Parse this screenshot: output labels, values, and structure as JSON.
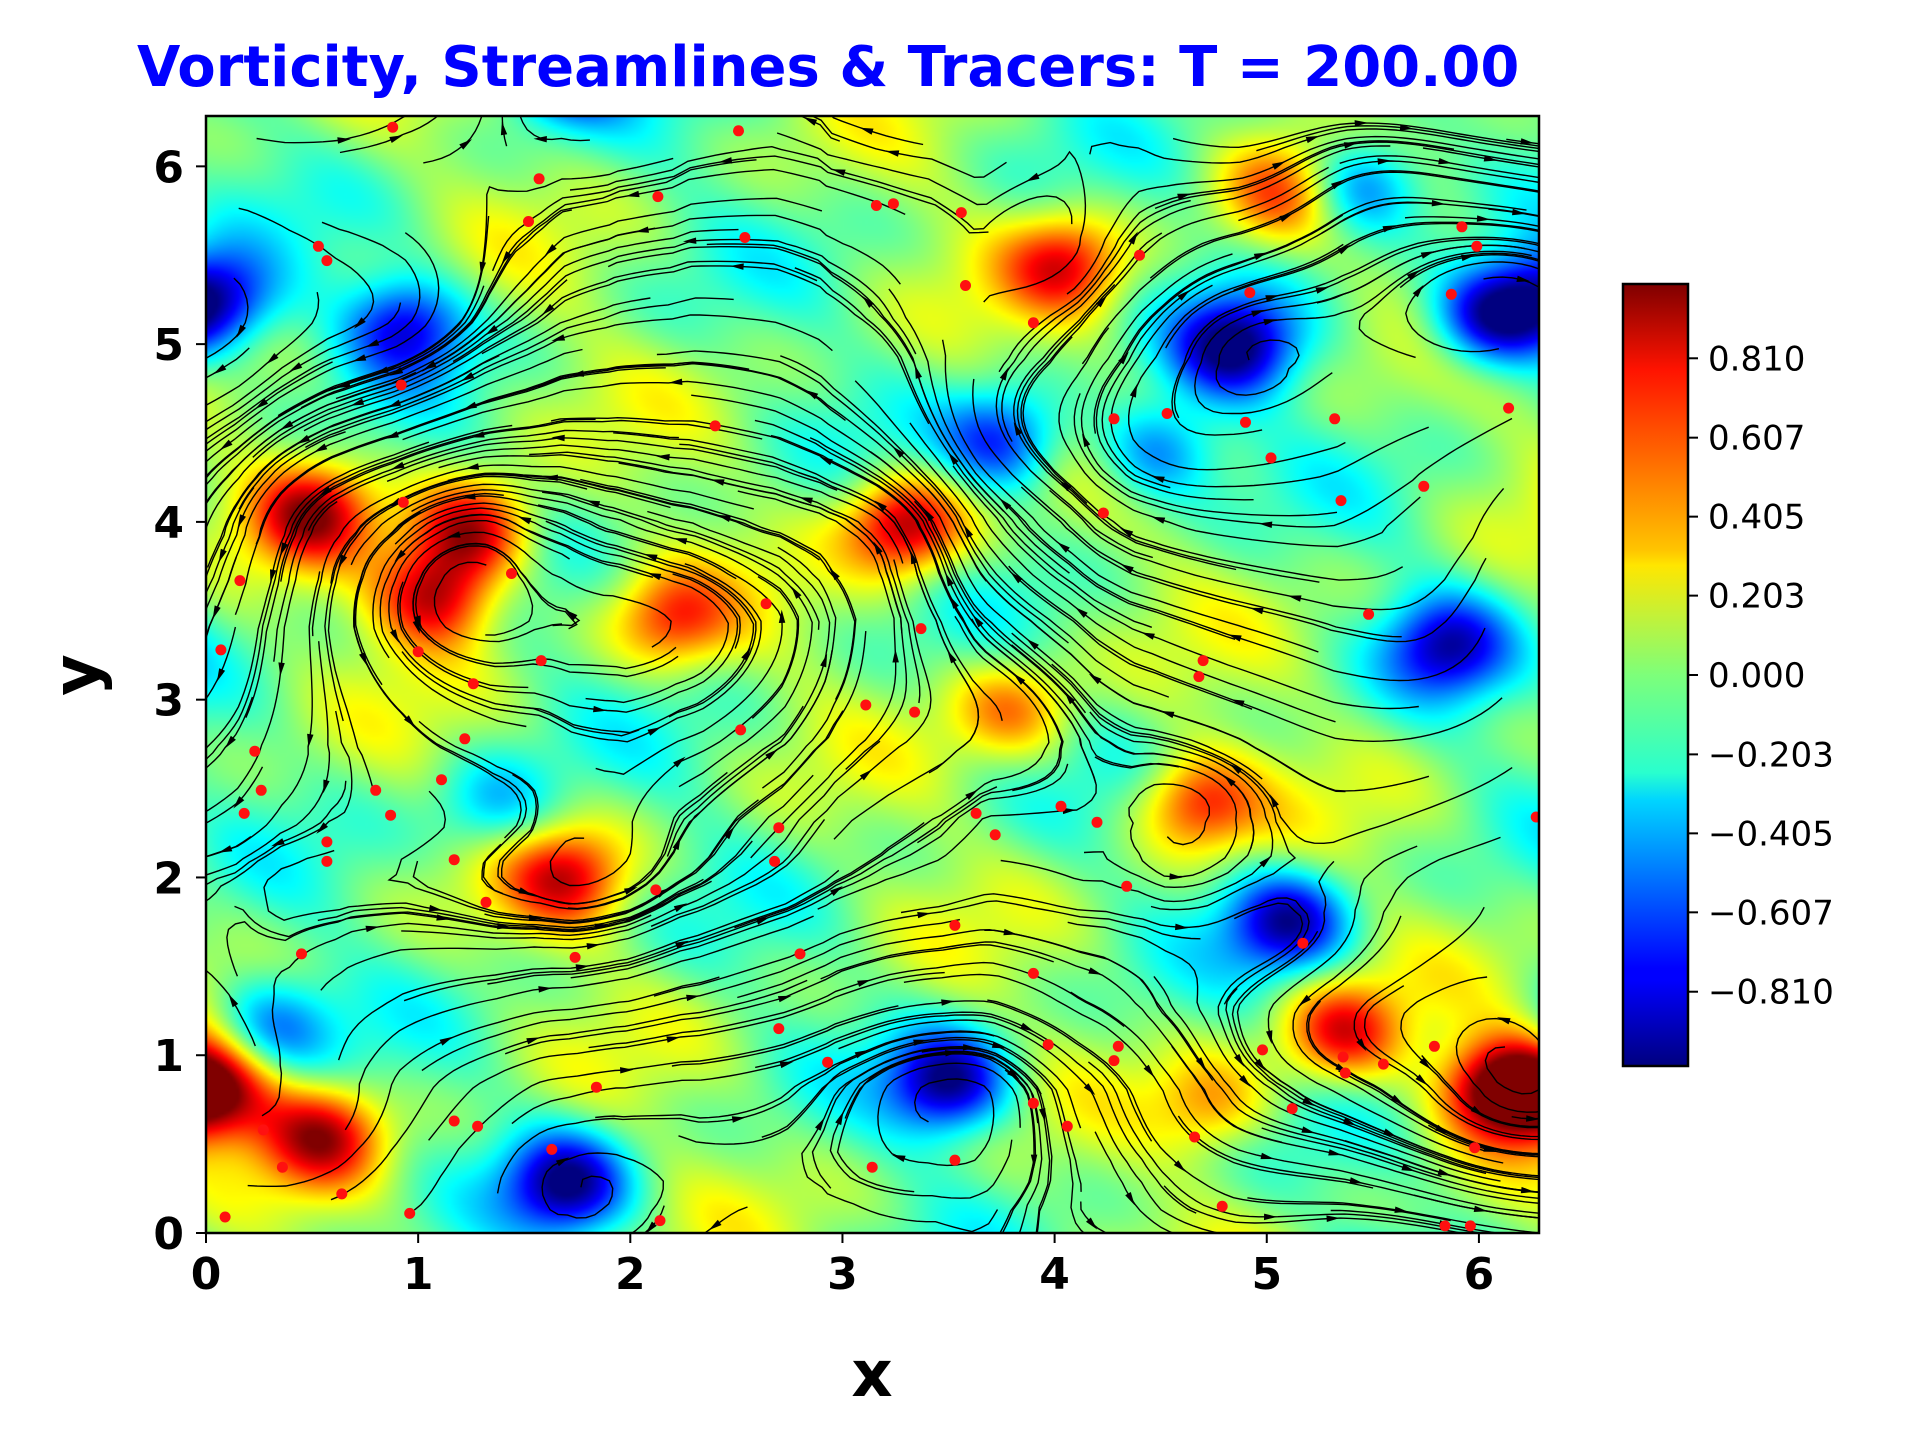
{
  "chart_data": {
    "type": "heatmap",
    "title": "Vorticity, Streamlines & Tracers: T = 200.00",
    "title_color": "#0000ff",
    "xlabel": "x",
    "ylabel": "y",
    "xlim": [
      0,
      6.2832
    ],
    "ylim": [
      0,
      6.2832
    ],
    "xticks": [
      "0",
      "1",
      "2",
      "3",
      "4",
      "5",
      "6"
    ],
    "yticks": [
      "0",
      "1",
      "2",
      "3",
      "4",
      "5",
      "6"
    ],
    "grid": false,
    "colormap": "jet",
    "colorbar": {
      "range": [
        -1.0,
        1.0
      ],
      "ticks": [
        "−0.810",
        "−0.607",
        "−0.405",
        "−0.203",
        "0.000",
        "0.203",
        "0.405",
        "0.607",
        "0.810"
      ],
      "tick_values": [
        -0.81,
        -0.607,
        -0.405,
        -0.203,
        0.0,
        0.203,
        0.405,
        0.607,
        0.81
      ]
    },
    "vortices": [
      {
        "x": 1.25,
        "y": 3.95,
        "w": 0.95
      },
      {
        "x": 1.08,
        "y": 3.58,
        "w": 0.9
      },
      {
        "x": 0.5,
        "y": 4.05,
        "w": 0.8
      },
      {
        "x": 3.3,
        "y": 3.98,
        "w": 0.95
      },
      {
        "x": 2.2,
        "y": 3.45,
        "w": 0.6
      },
      {
        "x": 6.1,
        "y": 0.8,
        "w": 1.0
      },
      {
        "x": 5.35,
        "y": 1.12,
        "w": 0.75
      },
      {
        "x": 0.55,
        "y": 0.55,
        "w": 0.8
      },
      {
        "x": 0.05,
        "y": 0.82,
        "w": 0.8
      },
      {
        "x": 4.05,
        "y": 5.45,
        "w": 0.7
      },
      {
        "x": 4.68,
        "y": 2.42,
        "w": 0.7
      },
      {
        "x": 5.05,
        "y": 5.85,
        "w": 0.5
      },
      {
        "x": 1.7,
        "y": 2.0,
        "w": 0.7
      },
      {
        "x": 3.8,
        "y": 2.95,
        "w": 0.5
      },
      {
        "x": 4.75,
        "y": 0.72,
        "w": 0.45
      },
      {
        "x": 4.85,
        "y": 4.98,
        "w": -0.95
      },
      {
        "x": 6.05,
        "y": 5.15,
        "w": -0.95
      },
      {
        "x": 3.5,
        "y": 0.85,
        "w": -0.95
      },
      {
        "x": 1.7,
        "y": 0.28,
        "w": -0.9
      },
      {
        "x": 5.1,
        "y": 1.75,
        "w": -0.85
      },
      {
        "x": 5.85,
        "y": 3.3,
        "w": -0.75
      },
      {
        "x": 0.05,
        "y": 5.25,
        "w": -0.8
      },
      {
        "x": 0.95,
        "y": 5.1,
        "w": -0.75
      },
      {
        "x": 3.75,
        "y": 4.45,
        "w": -0.7
      },
      {
        "x": 4.48,
        "y": 4.4,
        "w": -0.6
      },
      {
        "x": 5.45,
        "y": 5.9,
        "w": -0.65
      },
      {
        "x": 1.35,
        "y": 2.4,
        "w": -0.4
      },
      {
        "x": 0.3,
        "y": 1.15,
        "w": -0.5
      }
    ],
    "tracers": [
      [
        0.88,
        6.22
      ],
      [
        1.57,
        5.93
      ],
      [
        2.51,
        6.2
      ],
      [
        2.13,
        5.83
      ],
      [
        3.16,
        5.78
      ],
      [
        3.24,
        5.79
      ],
      [
        3.56,
        5.74
      ],
      [
        1.52,
        5.69
      ],
      [
        2.54,
        5.6
      ],
      [
        0.53,
        5.55
      ],
      [
        0.57,
        5.47
      ],
      [
        3.58,
        5.33
      ],
      [
        3.9,
        5.12
      ],
      [
        4.4,
        5.5
      ],
      [
        4.92,
        5.29
      ],
      [
        5.87,
        5.28
      ],
      [
        5.92,
        5.66
      ],
      [
        5.99,
        5.55
      ],
      [
        0.92,
        4.77
      ],
      [
        2.4,
        4.54
      ],
      [
        4.28,
        4.58
      ],
      [
        4.53,
        4.61
      ],
      [
        4.9,
        4.56
      ],
      [
        5.02,
        4.36
      ],
      [
        5.32,
        4.58
      ],
      [
        6.14,
        4.64
      ],
      [
        5.74,
        4.2
      ],
      [
        5.35,
        4.12
      ],
      [
        4.23,
        4.05
      ],
      [
        0.93,
        4.11
      ],
      [
        0.16,
        3.67
      ],
      [
        1.44,
        3.71
      ],
      [
        2.64,
        3.54
      ],
      [
        5.48,
        3.48
      ],
      [
        3.37,
        3.4
      ],
      [
        0.07,
        3.28
      ],
      [
        1.0,
        3.27
      ],
      [
        1.58,
        3.22
      ],
      [
        4.7,
        3.22
      ],
      [
        4.68,
        3.13
      ],
      [
        1.26,
        3.09
      ],
      [
        3.11,
        2.97
      ],
      [
        3.34,
        2.93
      ],
      [
        2.52,
        2.83
      ],
      [
        1.22,
        2.78
      ],
      [
        0.23,
        2.71
      ],
      [
        1.11,
        2.55
      ],
      [
        0.8,
        2.49
      ],
      [
        0.26,
        2.49
      ],
      [
        4.03,
        2.4
      ],
      [
        0.18,
        2.36
      ],
      [
        0.87,
        2.35
      ],
      [
        3.63,
        2.36
      ],
      [
        4.2,
        2.31
      ],
      [
        6.27,
        2.34
      ],
      [
        2.7,
        2.28
      ],
      [
        3.72,
        2.24
      ],
      [
        0.57,
        2.2
      ],
      [
        0.57,
        2.09
      ],
      [
        1.17,
        2.1
      ],
      [
        2.68,
        2.09
      ],
      [
        4.34,
        1.95
      ],
      [
        2.12,
        1.93
      ],
      [
        1.32,
        1.86
      ],
      [
        3.53,
        1.73
      ],
      [
        5.17,
        1.63
      ],
      [
        0.45,
        1.57
      ],
      [
        1.74,
        1.55
      ],
      [
        2.8,
        1.57
      ],
      [
        3.9,
        1.46
      ],
      [
        2.7,
        1.15
      ],
      [
        3.97,
        1.06
      ],
      [
        4.3,
        1.05
      ],
      [
        5.79,
        1.05
      ],
      [
        4.28,
        0.97
      ],
      [
        4.98,
        1.03
      ],
      [
        5.36,
        0.99
      ],
      [
        5.55,
        0.95
      ],
      [
        2.93,
        0.96
      ],
      [
        5.37,
        0.9
      ],
      [
        1.84,
        0.82
      ],
      [
        3.9,
        0.73
      ],
      [
        5.12,
        0.7
      ],
      [
        1.17,
        0.63
      ],
      [
        0.27,
        0.58
      ],
      [
        1.28,
        0.6
      ],
      [
        4.06,
        0.6
      ],
      [
        4.66,
        0.54
      ],
      [
        1.63,
        0.47
      ],
      [
        5.98,
        0.48
      ],
      [
        3.53,
        0.41
      ],
      [
        0.36,
        0.37
      ],
      [
        3.14,
        0.37
      ],
      [
        0.64,
        0.22
      ],
      [
        4.79,
        0.15
      ],
      [
        0.96,
        0.11
      ],
      [
        0.09,
        0.09
      ],
      [
        2.14,
        0.07
      ],
      [
        5.84,
        0.04
      ],
      [
        5.96,
        0.04
      ]
    ]
  }
}
